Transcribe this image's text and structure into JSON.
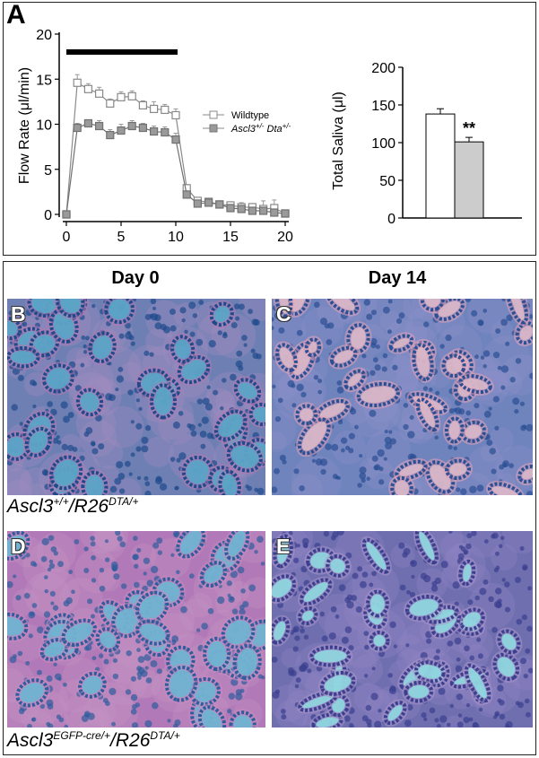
{
  "panel_a": {
    "letter": "A",
    "line_chart": {
      "type": "line",
      "ylabel_pre": "Flow Rate (",
      "ylabel_mu": "μ",
      "ylabel_post": "l/min)",
      "xlim": [
        0,
        20
      ],
      "ylim": [
        0,
        20
      ],
      "x_ticks": [
        "0",
        "5",
        "10",
        "15",
        "20"
      ],
      "y_ticks": [
        "0",
        "5",
        "10",
        "15",
        "20"
      ],
      "stimulus_bar": [
        0,
        10
      ],
      "x": [
        0,
        1,
        2,
        3,
        4,
        5,
        6,
        7,
        8,
        9,
        10,
        11,
        12,
        13,
        14,
        15,
        16,
        17,
        18,
        19,
        20
      ],
      "series": [
        {
          "name": "Wildtype",
          "marker": "open-square",
          "values": [
            0,
            14.6,
            13.9,
            13.4,
            12.3,
            13.0,
            13.1,
            12.1,
            11.7,
            11.6,
            11.0,
            2.9,
            1.5,
            1.4,
            1.1,
            1.0,
            0.8,
            0.8,
            0.6,
            0.7,
            0.1
          ],
          "errors": [
            0.2,
            0.9,
            0.6,
            0.7,
            0.5,
            0.6,
            0.6,
            0.5,
            0.8,
            0.6,
            0.7,
            0.4,
            0.3,
            0.3,
            0.3,
            0.4,
            0.5,
            0.4,
            0.9,
            0.9,
            0.2
          ]
        },
        {
          "name_pre": "Ascl3",
          "name_sup": "+/-",
          "name_mid": " Dta",
          "name_sup2": "+/-",
          "marker": "filled-square",
          "values": [
            0,
            9.6,
            10.1,
            9.8,
            8.8,
            9.3,
            9.8,
            9.6,
            9.2,
            9.1,
            8.3,
            2.2,
            1.2,
            1.3,
            1.1,
            0.7,
            0.6,
            0.4,
            0.4,
            0.2,
            0.1
          ],
          "errors": [
            0.2,
            0.5,
            0.4,
            0.6,
            0.6,
            0.7,
            0.6,
            0.5,
            0.6,
            0.6,
            0.7,
            0.3,
            0.3,
            0.2,
            0.3,
            0.3,
            0.3,
            0.3,
            0.3,
            0.3,
            0.1
          ]
        }
      ]
    },
    "bar_chart": {
      "type": "bar",
      "ylabel_pre": "Total Saliva (",
      "ylabel_mu": "μ",
      "ylabel_post": "l)",
      "ylim": [
        0,
        200
      ],
      "y_ticks": [
        "0",
        "50",
        "100",
        "150",
        "200"
      ],
      "values": [
        138,
        101
      ],
      "errors": [
        7,
        6
      ],
      "colors": [
        "#ffffff",
        "#cccccc"
      ],
      "significance": "**"
    }
  },
  "columns": {
    "day0": "Day 0",
    "day14": "Day 14"
  },
  "images": {
    "b": {
      "letter": "B",
      "bg": "#6e7fb3",
      "stroma": "#a08cc0",
      "nucleus": "#1e4a8c",
      "lumen": "#56a6c8",
      "pink": "#b07ab0"
    },
    "c": {
      "letter": "C",
      "bg": "#6f83bd",
      "stroma": "#8d8ec8",
      "nucleus": "#2a4f93",
      "lumen": "#d8b7c8",
      "pink": "#e3a3b8"
    },
    "d": {
      "letter": "D",
      "bg": "#b179b7",
      "stroma": "#c391c2",
      "nucleus": "#2f5c9c",
      "lumen": "#6bb5d2",
      "pink": "#c98ac0"
    },
    "e": {
      "letter": "E",
      "bg": "#6f6fb0",
      "stroma": "#8e83c2",
      "nucleus": "#3a3f8e",
      "lumen": "#8fd8e0",
      "pink": "#a893c9"
    }
  },
  "genotypes": {
    "top": {
      "base1": "Ascl3",
      "sup1": "+/+",
      "base2": "/R26",
      "sup2": "DTA/+"
    },
    "bottom": {
      "base1": "Ascl3",
      "sup1": "EGFP-cre/+",
      "base2": "/R26",
      "sup2": "DTA/+"
    }
  }
}
